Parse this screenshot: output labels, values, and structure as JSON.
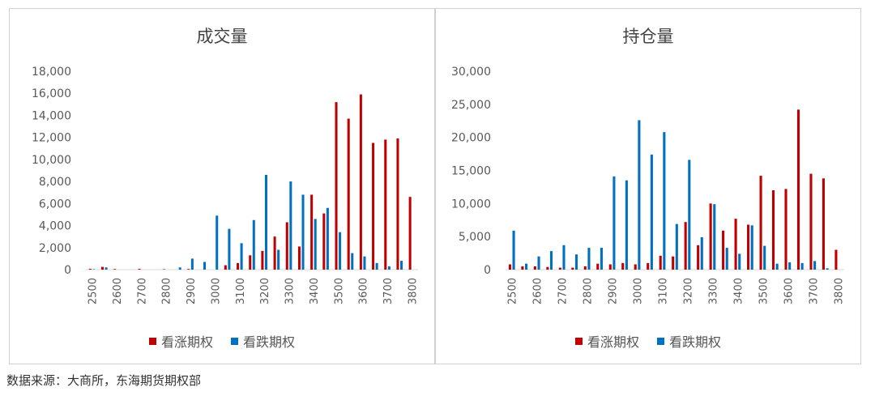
{
  "colors": {
    "call": "#c00000",
    "put": "#0070c0"
  },
  "source": "数据来源：大商所，东海期货期权部",
  "chart_data": [
    {
      "type": "bar",
      "title": "成交量",
      "ylim": [
        0,
        18000
      ],
      "yticks": [
        "0",
        "2,000",
        "4,000",
        "6,000",
        "8,000",
        "10,000",
        "12,000",
        "14,000",
        "16,000",
        "18,000"
      ],
      "xtick_labels": [
        "2500",
        "2600",
        "2700",
        "2800",
        "2900",
        "3000",
        "3100",
        "3200",
        "3300",
        "3400",
        "3500",
        "3600",
        "3700",
        "3800"
      ],
      "categories": [
        2500,
        2550,
        2600,
        2650,
        2700,
        2750,
        2800,
        2850,
        2900,
        2950,
        3000,
        3050,
        3100,
        3150,
        3200,
        3250,
        3300,
        3350,
        3400,
        3450,
        3500,
        3550,
        3600,
        3650,
        3700,
        3750,
        3800
      ],
      "series": [
        {
          "name": "看涨期权",
          "values": [
            80,
            250,
            60,
            0,
            80,
            0,
            40,
            0,
            60,
            0,
            0,
            400,
            600,
            1300,
            1700,
            3000,
            4300,
            2100,
            6800,
            5100,
            15200,
            13700,
            15900,
            11500,
            11800,
            11900,
            6600
          ]
        },
        {
          "name": "看跌期权",
          "values": [
            40,
            200,
            0,
            0,
            0,
            0,
            0,
            200,
            1000,
            700,
            4900,
            3700,
            2400,
            4500,
            8600,
            1800,
            8000,
            6800,
            4600,
            5600,
            3400,
            1500,
            1200,
            600,
            300,
            800,
            0
          ]
        }
      ],
      "legend": "bottom"
    },
    {
      "type": "bar",
      "title": "持仓量",
      "ylim": [
        0,
        30000
      ],
      "yticks": [
        "0",
        "5,000",
        "10,000",
        "15,000",
        "20,000",
        "25,000",
        "30,000"
      ],
      "xtick_labels": [
        "2500",
        "2600",
        "2700",
        "2800",
        "2900",
        "3000",
        "3100",
        "3200",
        "3300",
        "3400",
        "3500",
        "3600",
        "3700",
        "3800"
      ],
      "categories": [
        2500,
        2550,
        2600,
        2650,
        2700,
        2750,
        2800,
        2850,
        2900,
        2950,
        3000,
        3050,
        3100,
        3150,
        3200,
        3250,
        3300,
        3350,
        3400,
        3450,
        3500,
        3550,
        3600,
        3650,
        3700,
        3750,
        3800
      ],
      "series": [
        {
          "name": "看涨期权",
          "values": [
            800,
            500,
            500,
            400,
            300,
            300,
            500,
            900,
            800,
            1000,
            800,
            1000,
            2100,
            2000,
            7200,
            3700,
            10000,
            5900,
            7700,
            6800,
            14200,
            12000,
            12200,
            24200,
            14500,
            13800,
            3000
          ]
        },
        {
          "name": "看跌期权",
          "values": [
            5900,
            900,
            2000,
            2800,
            3700,
            2300,
            3300,
            3300,
            14100,
            13500,
            22600,
            17400,
            20800,
            6900,
            16600,
            4900,
            9900,
            3300,
            2400,
            6700,
            3600,
            900,
            1100,
            1000,
            1300,
            200,
            0
          ]
        }
      ],
      "legend": "bottom"
    }
  ]
}
